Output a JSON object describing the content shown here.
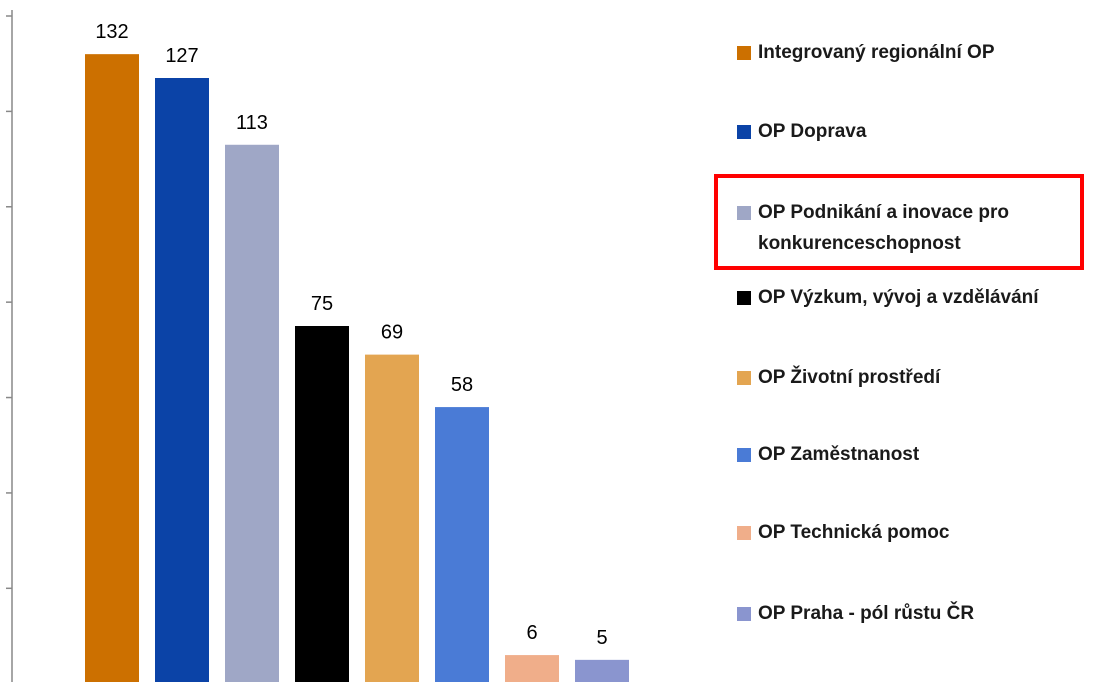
{
  "chart_data": {
    "type": "bar",
    "categories": [
      "Integrovaný regionální OP",
      "OP Doprava",
      "OP Podnikání a inovace pro konkurenceschopnost",
      "OP Výzkum, vývoj a vzdělávání",
      "OP Životní prostředí",
      "OP Zaměstnanost",
      "OP Technická pomoc",
      "OP Praha - pól růstu ČR"
    ],
    "values": [
      132,
      127,
      113,
      75,
      69,
      58,
      6,
      5
    ],
    "colors": [
      "#cc7000",
      "#0b43a7",
      "#9fa7c6",
      "#000000",
      "#e3a551",
      "#4a7bd6",
      "#f0ae8a",
      "#8a95cf"
    ],
    "ylim": [
      0,
      140
    ],
    "yticks": [
      0,
      20,
      40,
      60,
      80,
      100,
      120,
      140
    ]
  }
}
